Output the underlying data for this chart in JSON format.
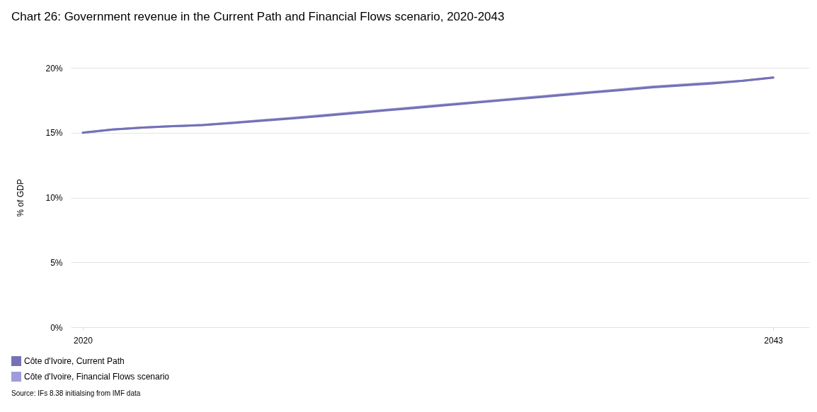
{
  "chart_data": {
    "type": "line",
    "title": "Chart 26: Government revenue in the Current Path and Financial Flows scenario, 2020-2043",
    "ylabel": "% of GDP",
    "x": [
      2020,
      2021,
      2022,
      2023,
      2024,
      2025,
      2026,
      2027,
      2028,
      2029,
      2030,
      2031,
      2032,
      2033,
      2034,
      2035,
      2036,
      2037,
      2038,
      2039,
      2040,
      2041,
      2042,
      2043
    ],
    "series": [
      {
        "name": "Côte d'Ivoire, Current Path",
        "color": "#7471b5",
        "values": [
          15.0,
          15.25,
          15.4,
          15.5,
          15.58,
          15.75,
          15.92,
          16.1,
          16.3,
          16.5,
          16.7,
          16.9,
          17.1,
          17.3,
          17.5,
          17.7,
          17.9,
          18.1,
          18.3,
          18.5,
          18.65,
          18.8,
          19.0,
          19.25
        ]
      },
      {
        "name": "Côte d'Ivoire, Financial Flows scenario",
        "color": "#9f9cdb",
        "values": [
          15.0,
          15.25,
          15.4,
          15.5,
          15.6,
          15.78,
          15.97,
          16.15,
          16.35,
          16.55,
          16.75,
          16.95,
          17.15,
          17.35,
          17.55,
          17.75,
          17.95,
          18.15,
          18.35,
          18.55,
          18.7,
          18.85,
          19.0,
          19.25
        ]
      }
    ],
    "xlim": [
      2019.6,
      2044.2
    ],
    "xticks": [
      2020,
      2043
    ],
    "ylim": [
      0,
      20
    ],
    "yticks": [
      {
        "value": 0,
        "label": "0%"
      },
      {
        "value": 5,
        "label": "5%"
      },
      {
        "value": 10,
        "label": "10%"
      },
      {
        "value": 15,
        "label": "15%"
      },
      {
        "value": 20,
        "label": "20%"
      }
    ],
    "grid": "y",
    "legend": "bottom",
    "line_style": "solid",
    "annotations": [
      "Source: IFs 8.38 initialsing from IMF data"
    ]
  }
}
